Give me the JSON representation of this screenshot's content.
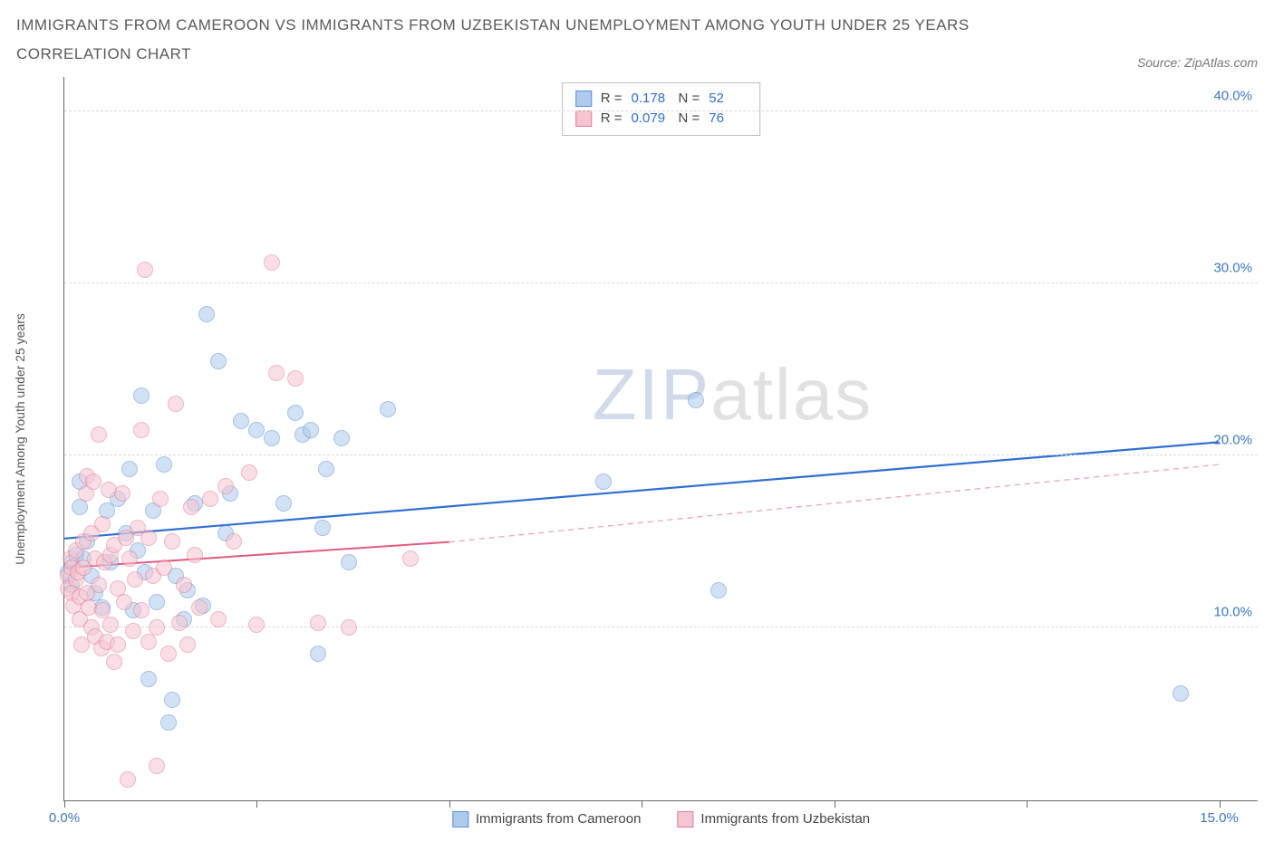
{
  "title_line1": "IMMIGRANTS FROM CAMEROON VS IMMIGRANTS FROM UZBEKISTAN UNEMPLOYMENT AMONG YOUTH UNDER 25 YEARS",
  "title_line2": "CORRELATION CHART",
  "source_label": "Source: ZipAtlas.com",
  "ylabel": "Unemployment Among Youth under 25 years",
  "watermark_zip": "ZIP",
  "watermark_rest": "atlas",
  "chart": {
    "type": "scatter",
    "xlim": [
      0,
      15.5
    ],
    "ylim": [
      0,
      42
    ],
    "x_ticks": [
      0,
      2.5,
      5.0,
      7.5,
      10.0,
      12.5,
      15.0
    ],
    "x_tick_labels": {
      "0": "0.0%",
      "15": "15.0%"
    },
    "y_ticks": [
      10,
      20,
      30,
      40
    ],
    "y_tick_labels": [
      "10.0%",
      "20.0%",
      "30.0%",
      "40.0%"
    ],
    "grid_color": "#d8d8d8",
    "axis_color": "#666666",
    "background_color": "#ffffff",
    "marker_radius": 9,
    "marker_opacity": 0.55,
    "series": [
      {
        "name": "Immigrants from Cameroon",
        "color_fill": "#aecbec",
        "color_stroke": "#5a8fd6",
        "R": "0.178",
        "N": "52",
        "trend": {
          "x1": 0,
          "y1": 15.2,
          "x2": 15.0,
          "y2": 20.8,
          "dash": false,
          "color": "#2f6fd0",
          "width": 2.2
        },
        "points": [
          [
            0.05,
            13.2
          ],
          [
            0.1,
            13.8
          ],
          [
            0.1,
            12.5
          ],
          [
            0.15,
            14.2
          ],
          [
            0.2,
            18.5
          ],
          [
            0.2,
            17.0
          ],
          [
            0.25,
            14.0
          ],
          [
            0.3,
            15.0
          ],
          [
            0.35,
            13.0
          ],
          [
            0.4,
            12.0
          ],
          [
            0.5,
            11.2
          ],
          [
            0.55,
            16.8
          ],
          [
            0.6,
            13.8
          ],
          [
            0.7,
            17.5
          ],
          [
            0.8,
            15.5
          ],
          [
            0.85,
            19.2
          ],
          [
            0.9,
            11.0
          ],
          [
            0.95,
            14.5
          ],
          [
            1.0,
            23.5
          ],
          [
            1.05,
            13.2
          ],
          [
            1.1,
            7.0
          ],
          [
            1.15,
            16.8
          ],
          [
            1.2,
            11.5
          ],
          [
            1.3,
            19.5
          ],
          [
            1.35,
            4.5
          ],
          [
            1.4,
            5.8
          ],
          [
            1.45,
            13.0
          ],
          [
            1.55,
            10.5
          ],
          [
            1.6,
            12.2
          ],
          [
            1.7,
            17.2
          ],
          [
            1.8,
            11.3
          ],
          [
            1.85,
            28.2
          ],
          [
            2.0,
            25.5
          ],
          [
            2.1,
            15.5
          ],
          [
            2.15,
            17.8
          ],
          [
            2.3,
            22.0
          ],
          [
            2.5,
            21.5
          ],
          [
            2.7,
            21.0
          ],
          [
            2.85,
            17.2
          ],
          [
            3.0,
            22.5
          ],
          [
            3.1,
            21.2
          ],
          [
            3.2,
            21.5
          ],
          [
            3.3,
            8.5
          ],
          [
            3.35,
            15.8
          ],
          [
            3.4,
            19.2
          ],
          [
            3.6,
            21.0
          ],
          [
            3.7,
            13.8
          ],
          [
            4.2,
            22.7
          ],
          [
            7.0,
            18.5
          ],
          [
            8.2,
            23.2
          ],
          [
            8.5,
            12.2
          ],
          [
            14.5,
            6.2
          ]
        ]
      },
      {
        "name": "Immigrants from Uzbekistan",
        "color_fill": "#f5c5d1",
        "color_stroke": "#e27a96",
        "R": "0.079",
        "N": "76",
        "trend_solid": {
          "x1": 0,
          "y1": 13.5,
          "x2": 5.0,
          "y2": 15.0,
          "color": "#e05a80",
          "width": 2
        },
        "trend_dash": {
          "x1": 5.0,
          "y1": 15.0,
          "x2": 15.0,
          "y2": 19.5,
          "color": "#e9a3b6",
          "width": 1.3
        },
        "points": [
          [
            0.05,
            13.0
          ],
          [
            0.05,
            12.3
          ],
          [
            0.08,
            14.0
          ],
          [
            0.1,
            13.5
          ],
          [
            0.1,
            12.0
          ],
          [
            0.12,
            11.3
          ],
          [
            0.15,
            14.5
          ],
          [
            0.15,
            12.8
          ],
          [
            0.18,
            13.2
          ],
          [
            0.2,
            11.8
          ],
          [
            0.2,
            10.5
          ],
          [
            0.22,
            9.0
          ],
          [
            0.25,
            15.0
          ],
          [
            0.25,
            13.5
          ],
          [
            0.28,
            17.8
          ],
          [
            0.3,
            18.8
          ],
          [
            0.3,
            12.0
          ],
          [
            0.32,
            11.2
          ],
          [
            0.35,
            15.5
          ],
          [
            0.35,
            10.0
          ],
          [
            0.38,
            18.5
          ],
          [
            0.4,
            9.5
          ],
          [
            0.4,
            14.0
          ],
          [
            0.45,
            21.2
          ],
          [
            0.45,
            12.5
          ],
          [
            0.48,
            8.8
          ],
          [
            0.5,
            16.0
          ],
          [
            0.5,
            11.0
          ],
          [
            0.52,
            13.8
          ],
          [
            0.55,
            9.2
          ],
          [
            0.58,
            18.0
          ],
          [
            0.6,
            14.2
          ],
          [
            0.6,
            10.2
          ],
          [
            0.65,
            8.0
          ],
          [
            0.65,
            14.8
          ],
          [
            0.7,
            12.3
          ],
          [
            0.7,
            9.0
          ],
          [
            0.75,
            17.8
          ],
          [
            0.78,
            11.5
          ],
          [
            0.8,
            15.2
          ],
          [
            0.82,
            1.2
          ],
          [
            0.85,
            14.0
          ],
          [
            0.9,
            9.8
          ],
          [
            0.92,
            12.8
          ],
          [
            0.95,
            15.8
          ],
          [
            1.0,
            11.0
          ],
          [
            1.0,
            21.5
          ],
          [
            1.05,
            30.8
          ],
          [
            1.1,
            9.2
          ],
          [
            1.1,
            15.2
          ],
          [
            1.15,
            13.0
          ],
          [
            1.2,
            10.0
          ],
          [
            1.2,
            2.0
          ],
          [
            1.25,
            17.5
          ],
          [
            1.3,
            13.5
          ],
          [
            1.35,
            8.5
          ],
          [
            1.4,
            15.0
          ],
          [
            1.45,
            23.0
          ],
          [
            1.5,
            10.3
          ],
          [
            1.55,
            12.5
          ],
          [
            1.6,
            9.0
          ],
          [
            1.65,
            17.0
          ],
          [
            1.7,
            14.2
          ],
          [
            1.75,
            11.2
          ],
          [
            1.9,
            17.5
          ],
          [
            2.0,
            10.5
          ],
          [
            2.1,
            18.2
          ],
          [
            2.2,
            15.0
          ],
          [
            2.4,
            19.0
          ],
          [
            2.5,
            10.2
          ],
          [
            2.7,
            31.2
          ],
          [
            2.75,
            24.8
          ],
          [
            3.0,
            24.5
          ],
          [
            3.3,
            10.3
          ],
          [
            3.7,
            10.0
          ],
          [
            4.5,
            14.0
          ]
        ]
      }
    ]
  },
  "stats_labels": {
    "R": "R =",
    "N": "N ="
  }
}
